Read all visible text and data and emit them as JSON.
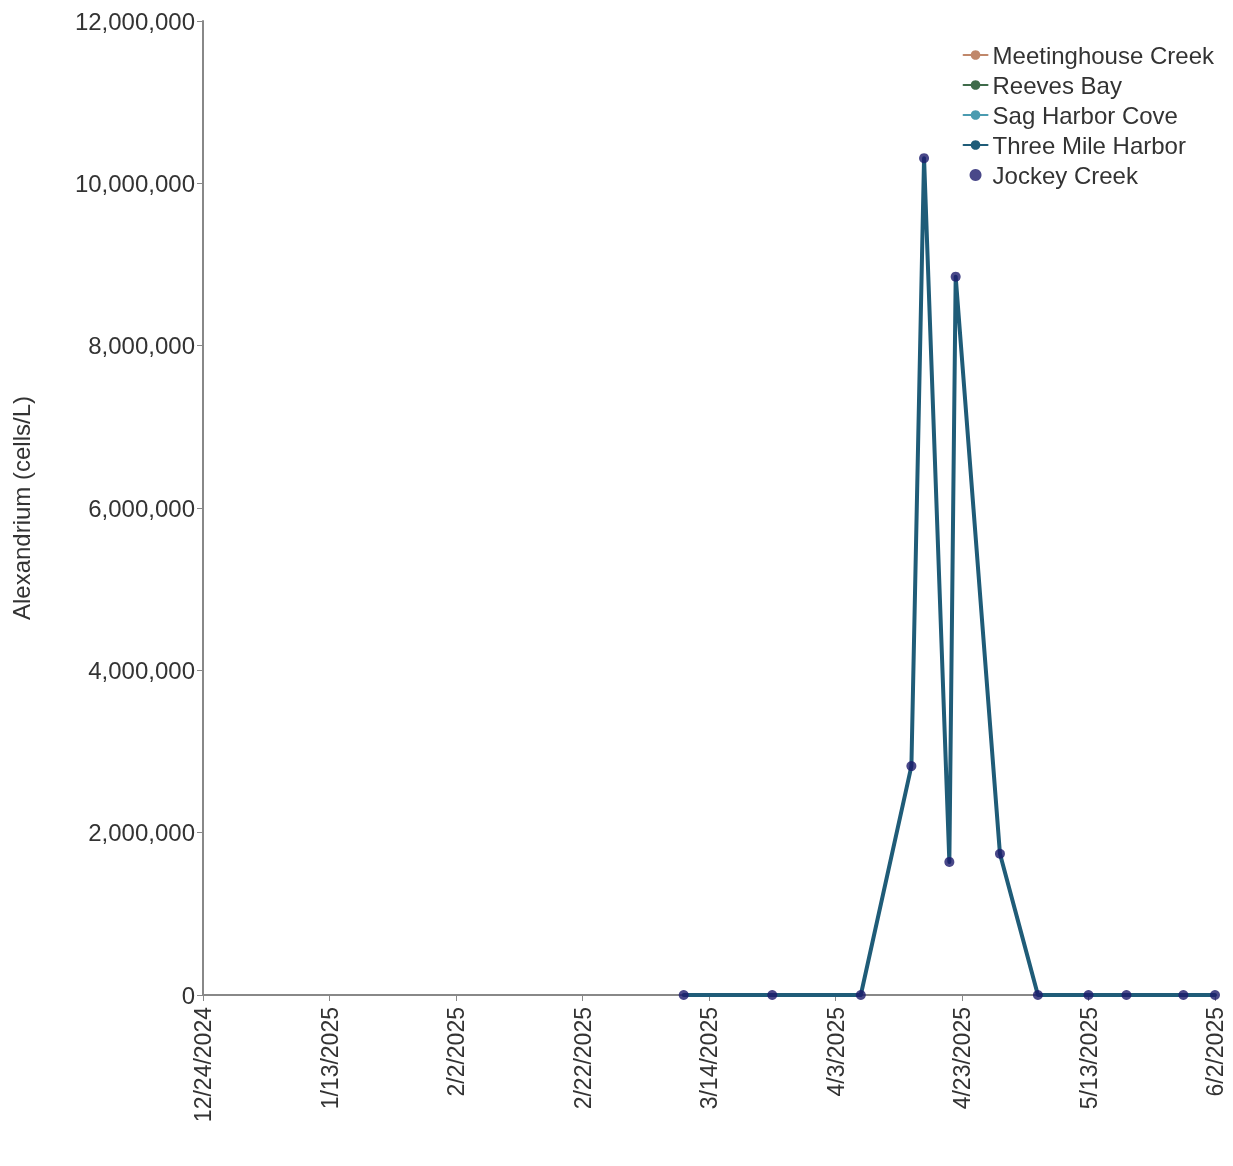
{
  "chart_data": {
    "type": "line",
    "ylabel": "Alexandrium (cells/L)",
    "x": [
      "2025-03-10",
      "2025-03-24",
      "2025-04-07",
      "2025-04-15",
      "2025-04-17",
      "2025-04-21",
      "2025-04-22",
      "2025-04-29",
      "2025-05-05",
      "2025-05-13",
      "2025-05-19",
      "2025-05-28",
      "2025-06-02"
    ],
    "series": [
      {
        "name": "Meetinghouse Creek",
        "color": "#c0876a",
        "marker": "none",
        "values": [
          null,
          null,
          null,
          null,
          null,
          null,
          null,
          null,
          null,
          null,
          null,
          null,
          null
        ]
      },
      {
        "name": "Reeves Bay",
        "color": "#3f6b4a",
        "marker": "none",
        "values": [
          null,
          null,
          null,
          null,
          null,
          null,
          null,
          null,
          null,
          null,
          null,
          null,
          null
        ]
      },
      {
        "name": "Sag Harbor Cove",
        "color": "#4a9bb0",
        "marker": "none",
        "values": [
          null,
          null,
          null,
          null,
          null,
          null,
          null,
          null,
          null,
          null,
          null,
          null,
          null
        ]
      },
      {
        "name": "Three Mile Harbor",
        "color": "#1f5c78",
        "marker": "none",
        "values": [
          0,
          0,
          0,
          2820000,
          10310000,
          1640000,
          8850000,
          1740000,
          0,
          0,
          0,
          0,
          0
        ]
      },
      {
        "name": "Jockey Creek",
        "type": "scatter",
        "color": "#1c1a6b",
        "marker": "circle",
        "values": [
          0,
          0,
          0,
          2820000,
          10310000,
          1640000,
          8850000,
          1740000,
          0,
          0,
          0,
          0,
          0
        ]
      }
    ],
    "xlim": [
      "2024-12-24",
      "2025-06-02"
    ],
    "xticks": [
      {
        "value": "2024-12-24",
        "label": "12/24/2024"
      },
      {
        "value": "2025-01-13",
        "label": "1/13/2025"
      },
      {
        "value": "2025-02-02",
        "label": "2/2/2025"
      },
      {
        "value": "2025-02-22",
        "label": "2/22/2025"
      },
      {
        "value": "2025-03-14",
        "label": "3/14/2025"
      },
      {
        "value": "2025-04-03",
        "label": "4/3/2025"
      },
      {
        "value": "2025-04-23",
        "label": "4/23/2025"
      },
      {
        "value": "2025-05-13",
        "label": "5/13/2025"
      },
      {
        "value": "2025-06-02",
        "label": "6/2/2025"
      }
    ],
    "ylim": [
      0,
      12000000
    ],
    "yticks": [
      {
        "value": 0,
        "label": "0"
      },
      {
        "value": 2000000,
        "label": "2,000,000"
      },
      {
        "value": 4000000,
        "label": "4,000,000"
      },
      {
        "value": 6000000,
        "label": "6,000,000"
      },
      {
        "value": 8000000,
        "label": "8,000,000"
      },
      {
        "value": 10000000,
        "label": "10,000,000"
      },
      {
        "value": 12000000,
        "label": "12,000,000"
      }
    ],
    "grid": false,
    "legend": "top right",
    "line_style": "solid"
  }
}
